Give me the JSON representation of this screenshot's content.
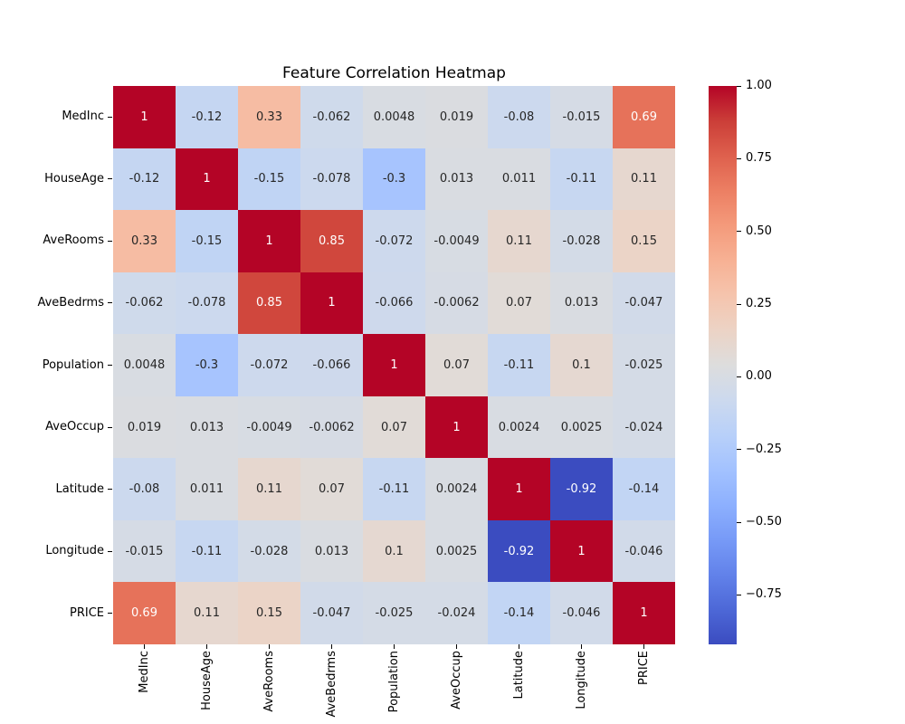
{
  "figure": {
    "background": "#ffffff",
    "text_color": "#000000"
  },
  "chart_data": {
    "type": "heatmap",
    "title": "Feature Correlation Heatmap",
    "x_categories": [
      "MedInc",
      "HouseAge",
      "AveRooms",
      "AveBedrms",
      "Population",
      "AveOccup",
      "Latitude",
      "Longitude",
      "PRICE"
    ],
    "y_categories": [
      "MedInc",
      "HouseAge",
      "AveRooms",
      "AveBedrms",
      "Population",
      "AveOccup",
      "Latitude",
      "Longitude",
      "PRICE"
    ],
    "values": [
      [
        1,
        -0.12,
        0.33,
        -0.062,
        0.0048,
        0.019,
        -0.08,
        -0.015,
        0.69
      ],
      [
        -0.12,
        1,
        -0.15,
        -0.078,
        -0.3,
        0.013,
        0.011,
        -0.11,
        0.11
      ],
      [
        0.33,
        -0.15,
        1,
        0.85,
        -0.072,
        -0.0049,
        0.11,
        -0.028,
        0.15
      ],
      [
        -0.062,
        -0.078,
        0.85,
        1,
        -0.066,
        -0.0062,
        0.07,
        0.013,
        -0.047
      ],
      [
        0.0048,
        -0.3,
        -0.072,
        -0.066,
        1,
        0.07,
        -0.11,
        0.1,
        -0.025
      ],
      [
        0.019,
        0.013,
        -0.0049,
        -0.0062,
        0.07,
        1,
        0.0024,
        0.0025,
        -0.024
      ],
      [
        -0.08,
        0.011,
        0.11,
        0.07,
        -0.11,
        0.0024,
        1,
        -0.92,
        -0.14
      ],
      [
        -0.015,
        -0.11,
        -0.028,
        0.013,
        0.1,
        0.0025,
        -0.92,
        1,
        -0.046
      ],
      [
        0.69,
        0.11,
        0.15,
        -0.047,
        -0.025,
        -0.024,
        -0.14,
        -0.046,
        1
      ]
    ],
    "annotated": true,
    "grid": false,
    "colormap": {
      "name": "coolwarm",
      "vmin": -0.92,
      "vmax": 1.0,
      "stops": [
        "#3b4cc0",
        "#4d68d7",
        "#6282ea",
        "#779af7",
        "#8db0fe",
        "#a3c2ff",
        "#b8d0f9",
        "#ccd9ee",
        "#dddddd",
        "#ecd3c5",
        "#f5c4ad",
        "#f7b194",
        "#f49a7b",
        "#ec7f63",
        "#de604d",
        "#cb3e38",
        "#b40426"
      ]
    },
    "colorbar": {
      "position": "right",
      "tick_values": [
        1.0,
        0.75,
        0.5,
        0.25,
        0.0,
        -0.25,
        -0.5,
        -0.75
      ],
      "tick_labels": [
        "1.00",
        "0.75",
        "0.50",
        "0.25",
        "0.00",
        "−0.25",
        "−0.50",
        "−0.75"
      ]
    },
    "annotation_text_colors": {
      "dark": "#262626",
      "light": "#ffffff"
    }
  }
}
